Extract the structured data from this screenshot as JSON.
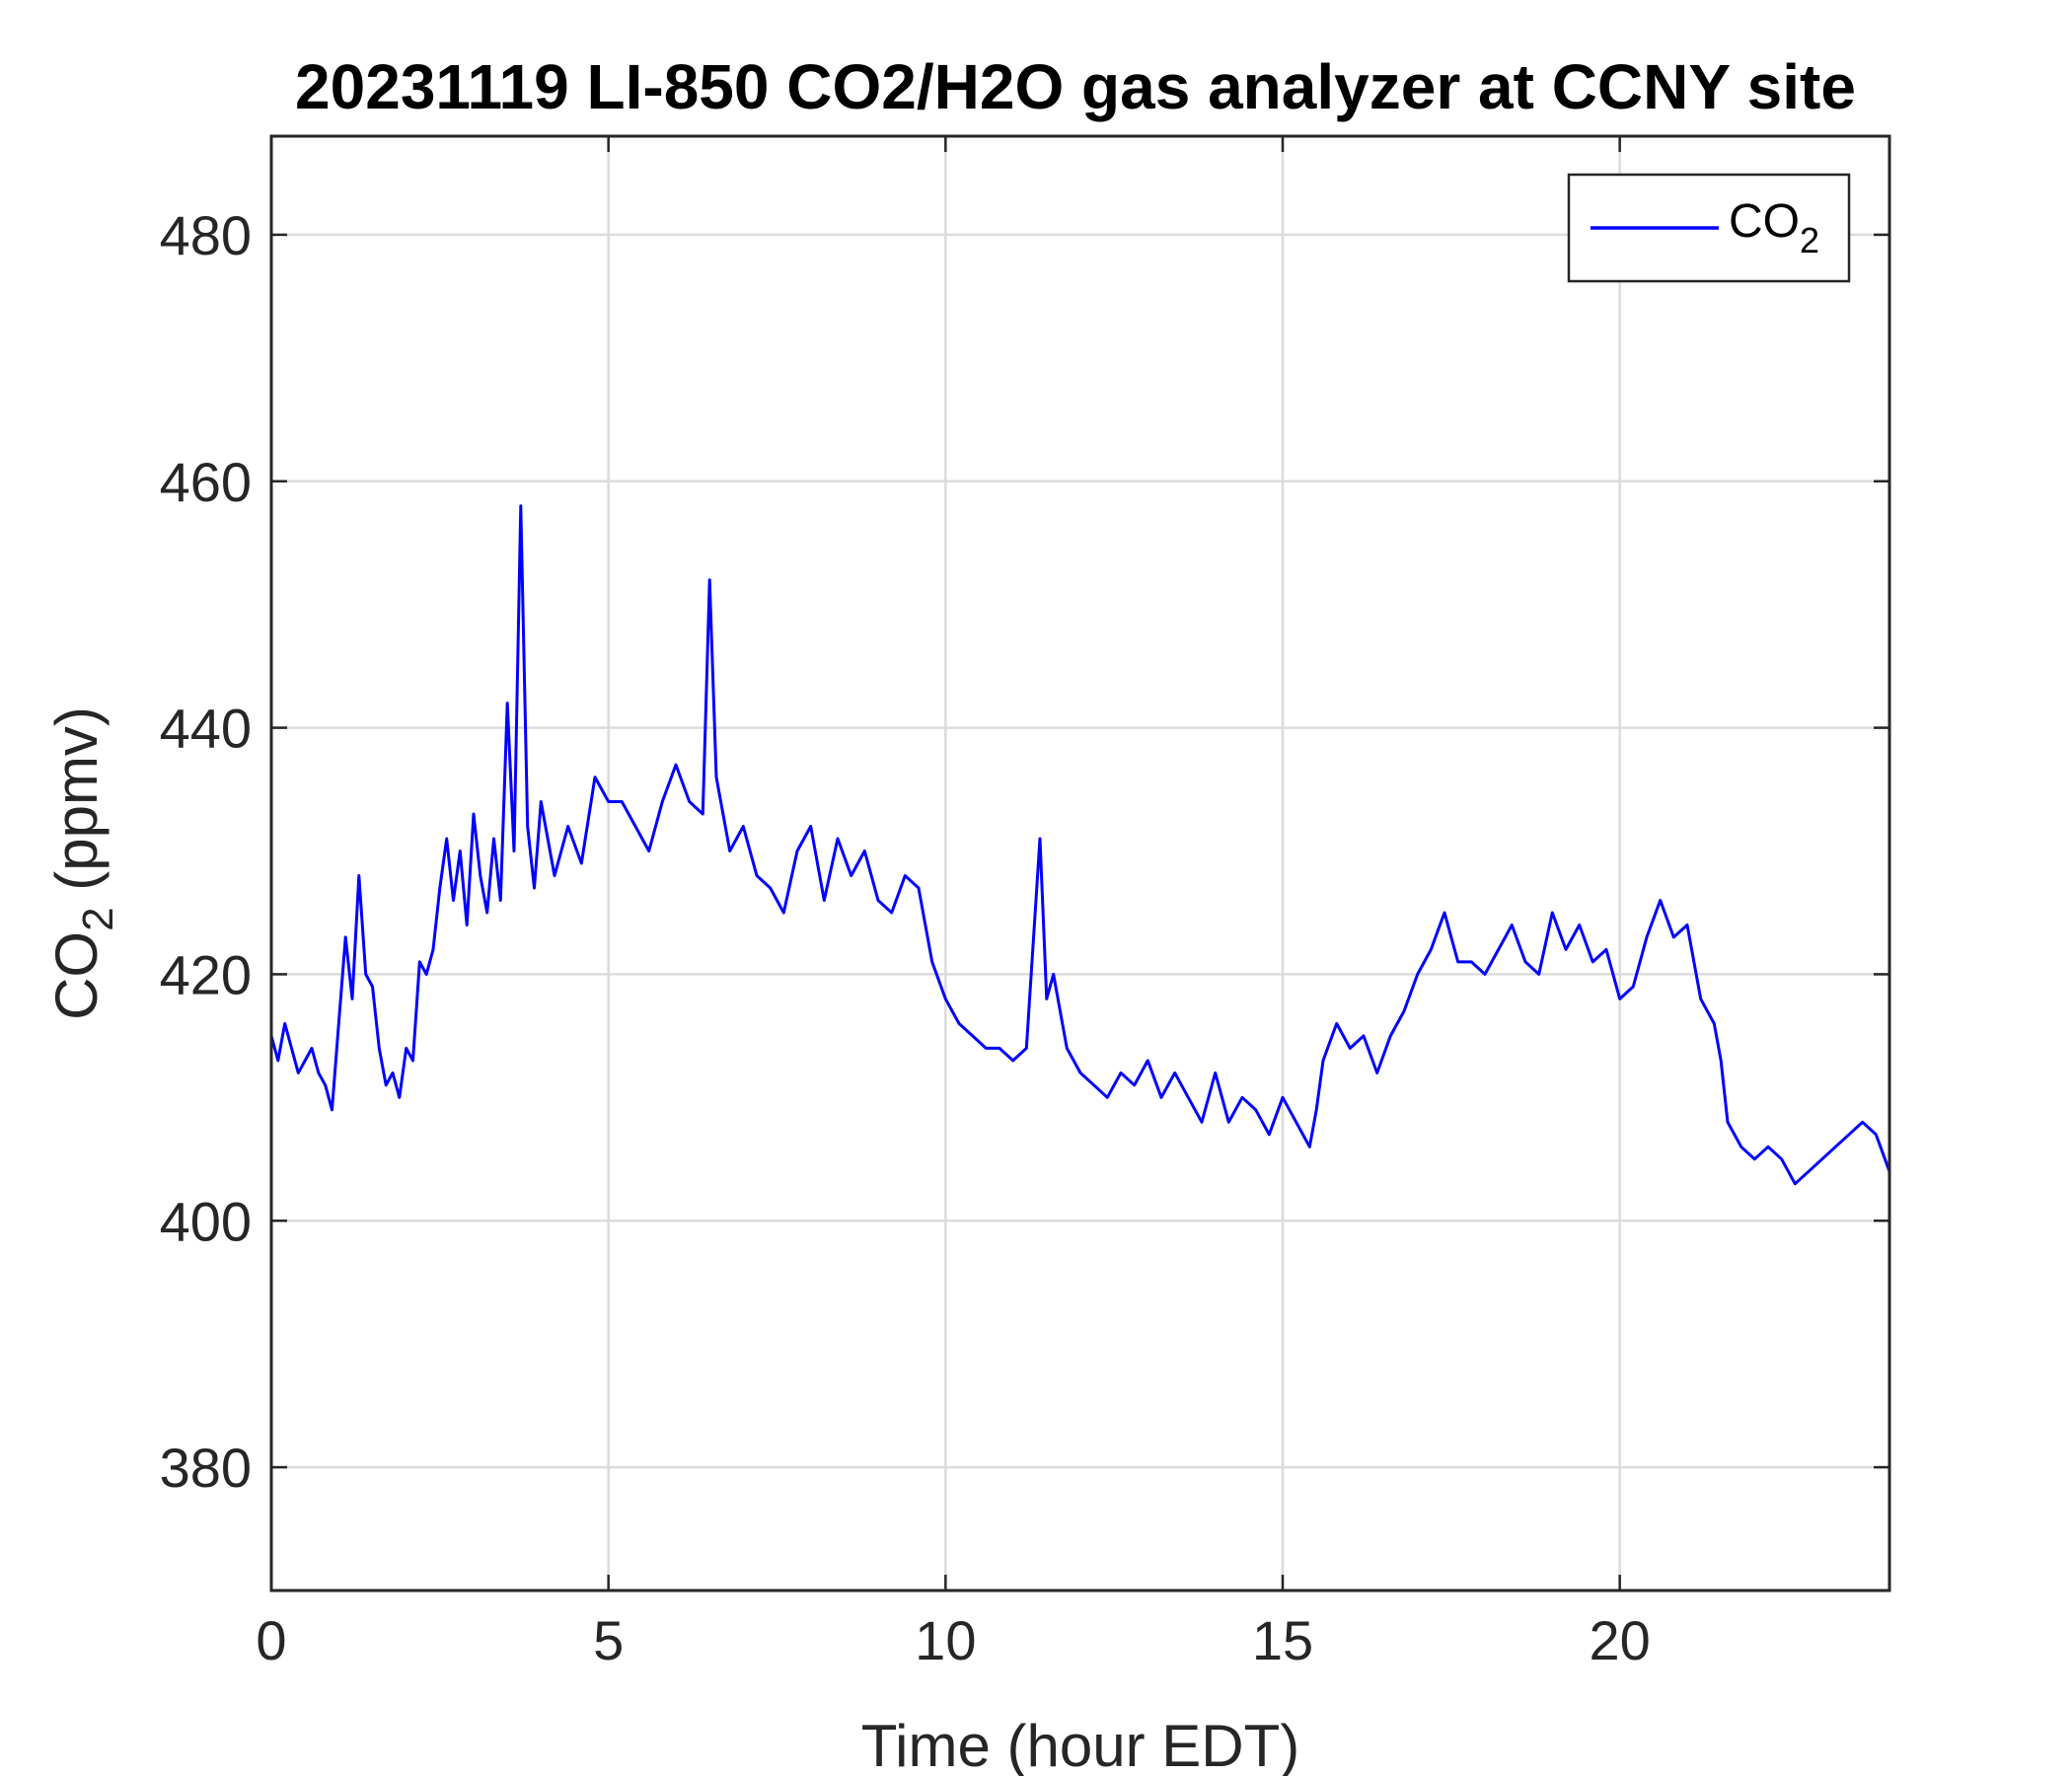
{
  "chart_data": {
    "type": "line",
    "title": "20231119 LI-850 CO2/H2O gas analyzer at CCNY site",
    "xlabel": "Time (hour EDT)",
    "ylabel": {
      "main": "CO",
      "sub": "2",
      "unit": " (ppmv)"
    },
    "xlim": [
      0,
      24
    ],
    "ylim": [
      370,
      488
    ],
    "xticks": [
      0,
      5,
      10,
      15,
      20
    ],
    "yticks": [
      380,
      400,
      420,
      440,
      460,
      480
    ],
    "grid": true,
    "legend_position": "top-right",
    "series": [
      {
        "name": "CO2",
        "legend_label": {
          "main": "CO",
          "sub": "2"
        },
        "color": "#0000ff",
        "x": [
          0,
          0.1,
          0.2,
          0.3,
          0.4,
          0.5,
          0.6,
          0.7,
          0.8,
          0.9,
          1.0,
          1.1,
          1.2,
          1.3,
          1.4,
          1.5,
          1.6,
          1.7,
          1.8,
          1.9,
          2.0,
          2.1,
          2.2,
          2.3,
          2.4,
          2.5,
          2.6,
          2.7,
          2.8,
          2.9,
          3.0,
          3.1,
          3.2,
          3.3,
          3.4,
          3.5,
          3.6,
          3.7,
          3.8,
          3.9,
          4.0,
          4.2,
          4.4,
          4.6,
          4.8,
          5.0,
          5.2,
          5.4,
          5.6,
          5.8,
          6.0,
          6.2,
          6.4,
          6.5,
          6.6,
          6.8,
          7.0,
          7.2,
          7.4,
          7.6,
          7.8,
          8.0,
          8.2,
          8.4,
          8.6,
          8.8,
          9.0,
          9.2,
          9.4,
          9.6,
          9.8,
          10.0,
          10.2,
          10.4,
          10.6,
          10.8,
          11.0,
          11.2,
          11.4,
          11.5,
          11.6,
          11.8,
          12.0,
          12.2,
          12.4,
          12.6,
          12.8,
          13.0,
          13.2,
          13.4,
          13.6,
          13.8,
          14.0,
          14.2,
          14.4,
          14.6,
          14.8,
          15.0,
          15.2,
          15.4,
          15.5,
          15.6,
          15.8,
          16.0,
          16.2,
          16.4,
          16.6,
          16.8,
          17.0,
          17.2,
          17.4,
          17.6,
          17.8,
          18.0,
          18.2,
          18.4,
          18.6,
          18.8,
          19.0,
          19.2,
          19.4,
          19.6,
          19.8,
          20.0,
          20.2,
          20.4,
          20.6,
          20.8,
          21.0,
          21.2,
          21.4,
          21.5,
          21.6,
          21.8,
          22.0,
          22.2,
          22.4,
          22.6,
          22.8,
          23.0,
          23.2,
          23.4,
          23.6,
          23.8,
          24.0
        ],
        "y": [
          415,
          413,
          416,
          414,
          412,
          413,
          414,
          412,
          411,
          409,
          416,
          423,
          418,
          428,
          420,
          419,
          414,
          411,
          412,
          410,
          414,
          413,
          421,
          420,
          422,
          427,
          431,
          426,
          430,
          424,
          433,
          428,
          425,
          431,
          426,
          442,
          430,
          458,
          432,
          427,
          434,
          428,
          432,
          429,
          436,
          434,
          434,
          432,
          430,
          434,
          437,
          434,
          433,
          452,
          436,
          430,
          432,
          428,
          427,
          425,
          430,
          432,
          426,
          431,
          428,
          430,
          426,
          425,
          428,
          427,
          421,
          418,
          416,
          415,
          414,
          414,
          413,
          414,
          431,
          418,
          420,
          414,
          412,
          411,
          410,
          412,
          411,
          413,
          410,
          412,
          410,
          408,
          412,
          408,
          410,
          409,
          407,
          410,
          408,
          406,
          409,
          413,
          416,
          414,
          415,
          412,
          415,
          417,
          420,
          422,
          425,
          421,
          421,
          420,
          422,
          424,
          421,
          420,
          425,
          422,
          424,
          421,
          422,
          418,
          419,
          423,
          426,
          423,
          424,
          418,
          416,
          413,
          408,
          406,
          405,
          406,
          405,
          403,
          404,
          405,
          406,
          407,
          408,
          407,
          404
        ]
      }
    ]
  }
}
